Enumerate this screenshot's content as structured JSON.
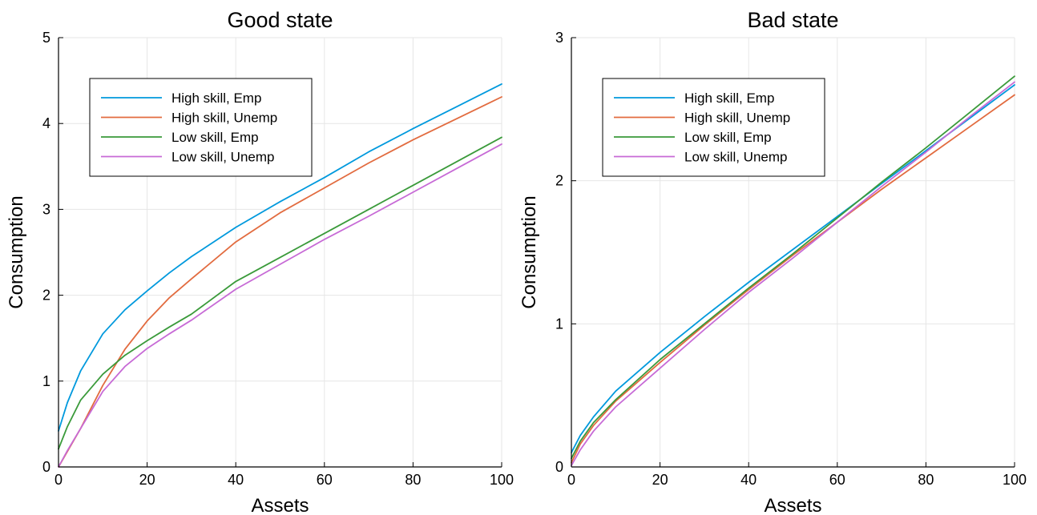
{
  "chart_data": [
    {
      "type": "line",
      "title": "Good state",
      "xlabel": "Assets",
      "ylabel": "Consumption",
      "xlim": [
        0,
        100
      ],
      "ylim": [
        0,
        5
      ],
      "xticks": [
        "0",
        "20",
        "40",
        "60",
        "80",
        "100"
      ],
      "yticks": [
        "0",
        "1",
        "2",
        "3",
        "4",
        "5"
      ],
      "grid": true,
      "legend_position": "top-left",
      "series": [
        {
          "name": "High skill, Emp",
          "color": "#0099dd",
          "x": [
            0,
            2,
            5,
            10,
            15,
            20,
            25,
            30,
            40,
            50,
            60,
            70,
            80,
            90,
            100
          ],
          "y": [
            0.42,
            0.75,
            1.12,
            1.55,
            1.83,
            2.05,
            2.26,
            2.45,
            2.79,
            3.09,
            3.37,
            3.67,
            3.94,
            4.2,
            4.46
          ]
        },
        {
          "name": "High skill, Unemp",
          "color": "#e26b3f",
          "x": [
            0,
            2,
            5,
            10,
            15,
            20,
            25,
            30,
            40,
            50,
            60,
            70,
            80,
            90,
            100
          ],
          "y": [
            0.0,
            0.18,
            0.45,
            0.95,
            1.37,
            1.7,
            1.97,
            2.19,
            2.62,
            2.96,
            3.25,
            3.54,
            3.81,
            4.06,
            4.31
          ]
        },
        {
          "name": "Low skill, Emp",
          "color": "#3a9a3a",
          "x": [
            0,
            2,
            5,
            10,
            15,
            20,
            25,
            30,
            40,
            50,
            60,
            70,
            80,
            90,
            100
          ],
          "y": [
            0.21,
            0.47,
            0.78,
            1.08,
            1.3,
            1.47,
            1.63,
            1.78,
            2.16,
            2.44,
            2.72,
            3.0,
            3.28,
            3.56,
            3.84
          ]
        },
        {
          "name": "Low skill, Unemp",
          "color": "#c76ad6",
          "x": [
            0,
            2,
            5,
            10,
            15,
            20,
            25,
            30,
            40,
            50,
            60,
            70,
            80,
            90,
            100
          ],
          "y": [
            0.0,
            0.19,
            0.45,
            0.88,
            1.17,
            1.38,
            1.55,
            1.71,
            2.07,
            2.36,
            2.65,
            2.92,
            3.2,
            3.48,
            3.76
          ]
        }
      ]
    },
    {
      "type": "line",
      "title": "Bad state",
      "xlabel": "Assets",
      "ylabel": "Consumption",
      "xlim": [
        0,
        100
      ],
      "ylim": [
        0,
        3
      ],
      "xticks": [
        "0",
        "20",
        "40",
        "60",
        "80",
        "100"
      ],
      "yticks": [
        "0",
        "1",
        "2",
        "3"
      ],
      "grid": true,
      "legend_position": "top-left",
      "series": [
        {
          "name": "High skill, Emp",
          "color": "#0099dd",
          "x": [
            0,
            2,
            5,
            10,
            20,
            30,
            40,
            50,
            60,
            70,
            80,
            90,
            100
          ],
          "y": [
            0.1,
            0.22,
            0.35,
            0.53,
            0.8,
            1.05,
            1.29,
            1.52,
            1.75,
            1.98,
            2.21,
            2.44,
            2.67
          ]
        },
        {
          "name": "High skill, Unemp",
          "color": "#e26b3f",
          "x": [
            0,
            2,
            5,
            10,
            20,
            30,
            40,
            50,
            60,
            70,
            80,
            90,
            100
          ],
          "y": [
            0.03,
            0.16,
            0.29,
            0.46,
            0.73,
            0.99,
            1.24,
            1.48,
            1.71,
            1.94,
            2.16,
            2.38,
            2.6
          ]
        },
        {
          "name": "Low skill, Emp",
          "color": "#3a9a3a",
          "x": [
            0,
            2,
            5,
            10,
            20,
            30,
            40,
            50,
            60,
            70,
            80,
            90,
            100
          ],
          "y": [
            0.06,
            0.18,
            0.31,
            0.47,
            0.75,
            1.0,
            1.25,
            1.49,
            1.74,
            1.99,
            2.23,
            2.48,
            2.73
          ]
        },
        {
          "name": "Low skill, Unemp",
          "color": "#c76ad6",
          "x": [
            0,
            2,
            5,
            10,
            20,
            30,
            40,
            50,
            60,
            70,
            80,
            90,
            100
          ],
          "y": [
            0.01,
            0.12,
            0.25,
            0.42,
            0.69,
            0.96,
            1.22,
            1.46,
            1.71,
            1.96,
            2.2,
            2.45,
            2.69
          ]
        }
      ]
    }
  ]
}
